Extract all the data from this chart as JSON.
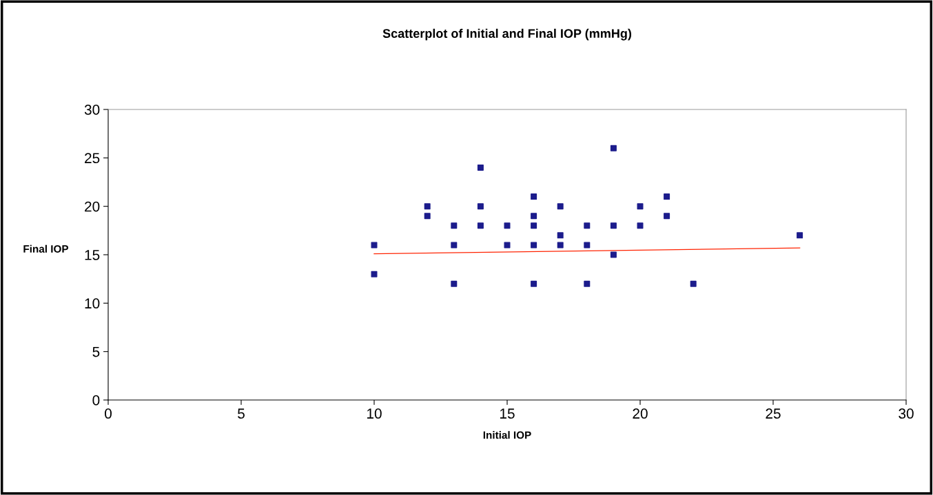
{
  "chart_data": {
    "type": "scatter",
    "title": "Scatterplot of Initial and Final IOP (mmHg)",
    "xlabel": "Initial IOP",
    "ylabel": "Final IOP",
    "series": [
      {
        "color": "#1c1c8c",
        "marker": "square",
        "x": [
          10,
          10,
          12,
          12,
          13,
          13,
          13,
          14,
          14,
          14,
          15,
          15,
          16,
          16,
          16,
          16,
          16,
          17,
          17,
          17,
          18,
          18,
          18,
          19,
          19,
          19,
          20,
          20,
          21,
          21,
          22,
          26
        ],
        "values": [
          16,
          13,
          20,
          19,
          18,
          16,
          12,
          24,
          20,
          18,
          18,
          16,
          21,
          19,
          18,
          16,
          12,
          20,
          17,
          16,
          18,
          16,
          12,
          26,
          18,
          15,
          20,
          18,
          21,
          19,
          12,
          17
        ]
      },
      {
        "type": "line",
        "color": "#ff2200",
        "marker": "none",
        "x": [
          10,
          26
        ],
        "values": [
          15.1,
          15.7
        ]
      }
    ],
    "xlim": [
      0,
      30
    ],
    "xticks": [
      0,
      5,
      10,
      15,
      20,
      25,
      30
    ],
    "ylim": [
      0,
      30
    ],
    "yticks": [
      0,
      5,
      10,
      15,
      20,
      25,
      30
    ],
    "grid": false,
    "legend": false
  }
}
